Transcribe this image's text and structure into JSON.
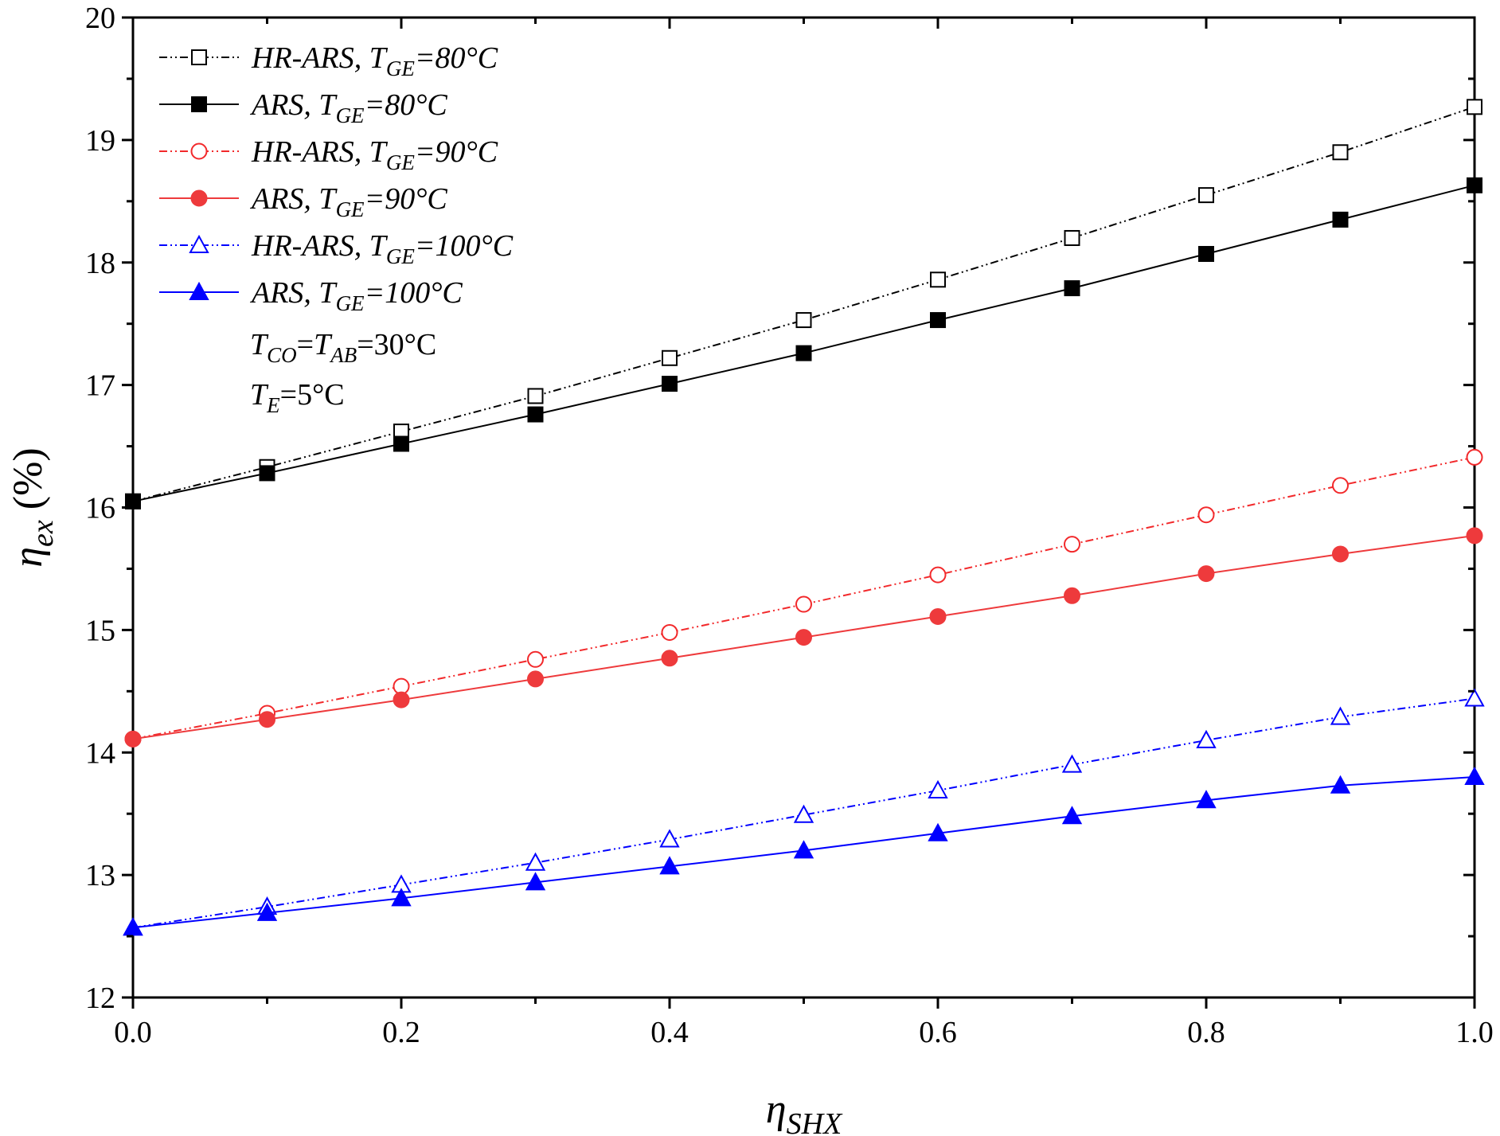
{
  "chart_data": {
    "type": "line",
    "x": [
      0.0,
      0.1,
      0.2,
      0.3,
      0.4,
      0.5,
      0.6,
      0.7,
      0.8,
      0.9,
      1.0
    ],
    "xlim": [
      0.0,
      1.0
    ],
    "ylim": [
      12,
      20
    ],
    "x_ticks": [
      0.0,
      0.2,
      0.4,
      0.6,
      0.8,
      1.0
    ],
    "x_tick_labels": [
      "0.0",
      "0.2",
      "0.4",
      "0.6",
      "0.8",
      "1.0"
    ],
    "y_ticks": [
      12,
      13,
      14,
      15,
      16,
      17,
      18,
      19,
      20
    ],
    "y_tick_labels": [
      "12",
      "13",
      "14",
      "15",
      "16",
      "17",
      "18",
      "19",
      "20"
    ],
    "xlabel": {
      "main": "η",
      "sub": "SHX"
    },
    "ylabel": {
      "main": "η",
      "sub": "ex",
      "suffix": " (%)"
    },
    "grid": false,
    "legend_position": "top-left",
    "series": [
      {
        "name": "HR-ARS, T_GE=80°C",
        "label_main": "HR-ARS, T",
        "label_sub": "GE",
        "label_rest": "=80°C",
        "color": "#000000",
        "marker": "square",
        "filled": false,
        "dash": "dashdotdot",
        "values": [
          16.05,
          16.33,
          16.62,
          16.91,
          17.22,
          17.53,
          17.86,
          18.2,
          18.55,
          18.9,
          19.27
        ]
      },
      {
        "name": "ARS, T_GE=80°C",
        "label_main": "ARS, T",
        "label_sub": "GE",
        "label_rest": "=80°C",
        "color": "#000000",
        "marker": "square",
        "filled": true,
        "dash": "solid",
        "values": [
          16.05,
          16.28,
          16.52,
          16.76,
          17.01,
          17.26,
          17.53,
          17.79,
          18.07,
          18.35,
          18.63
        ]
      },
      {
        "name": "HR-ARS, T_GE=90°C",
        "label_main": "HR-ARS, T",
        "label_sub": "GE",
        "label_rest": "=90°C",
        "color": "#f2292b",
        "marker": "circle",
        "filled": false,
        "dash": "dashdotdot",
        "values": [
          14.11,
          14.32,
          14.54,
          14.76,
          14.98,
          15.21,
          15.45,
          15.7,
          15.94,
          16.18,
          16.41
        ]
      },
      {
        "name": "ARS, T_GE=90°C",
        "label_main": "ARS, T",
        "label_sub": "GE",
        "label_rest": "=90°C",
        "color": "#ee3a3c",
        "marker": "circle",
        "filled": true,
        "dash": "solid",
        "values": [
          14.11,
          14.27,
          14.43,
          14.6,
          14.77,
          14.94,
          15.11,
          15.28,
          15.46,
          15.62,
          15.77
        ]
      },
      {
        "name": "HR-ARS, T_GE=100°C",
        "label_main": "HR-ARS, T",
        "label_sub": "GE",
        "label_rest": "=100°C",
        "color": "#0000ff",
        "marker": "triangle",
        "filled": false,
        "dash": "dashdotdot",
        "values": [
          12.57,
          12.74,
          12.92,
          13.1,
          13.29,
          13.49,
          13.69,
          13.9,
          14.1,
          14.29,
          14.44
        ]
      },
      {
        "name": "ARS, T_GE=100°C",
        "label_main": "ARS, T",
        "label_sub": "GE",
        "label_rest": "=100°C",
        "color": "#0000ff",
        "marker": "triangle",
        "filled": true,
        "dash": "solid",
        "values": [
          12.57,
          12.69,
          12.81,
          12.94,
          13.07,
          13.2,
          13.34,
          13.48,
          13.61,
          13.73,
          13.8
        ]
      }
    ],
    "annotations": [
      {
        "parts": [
          {
            "t": "T",
            "s": ""
          },
          {
            "t": "CO",
            "s": "sub"
          },
          {
            "t": "=T",
            "s": ""
          },
          {
            "t": "AB",
            "s": "sub"
          },
          {
            "t": "=30°C",
            "s": ""
          }
        ]
      },
      {
        "parts": [
          {
            "t": "T",
            "s": ""
          },
          {
            "t": "E",
            "s": "sub"
          },
          {
            "t": "=5°C",
            "s": ""
          }
        ]
      }
    ]
  }
}
